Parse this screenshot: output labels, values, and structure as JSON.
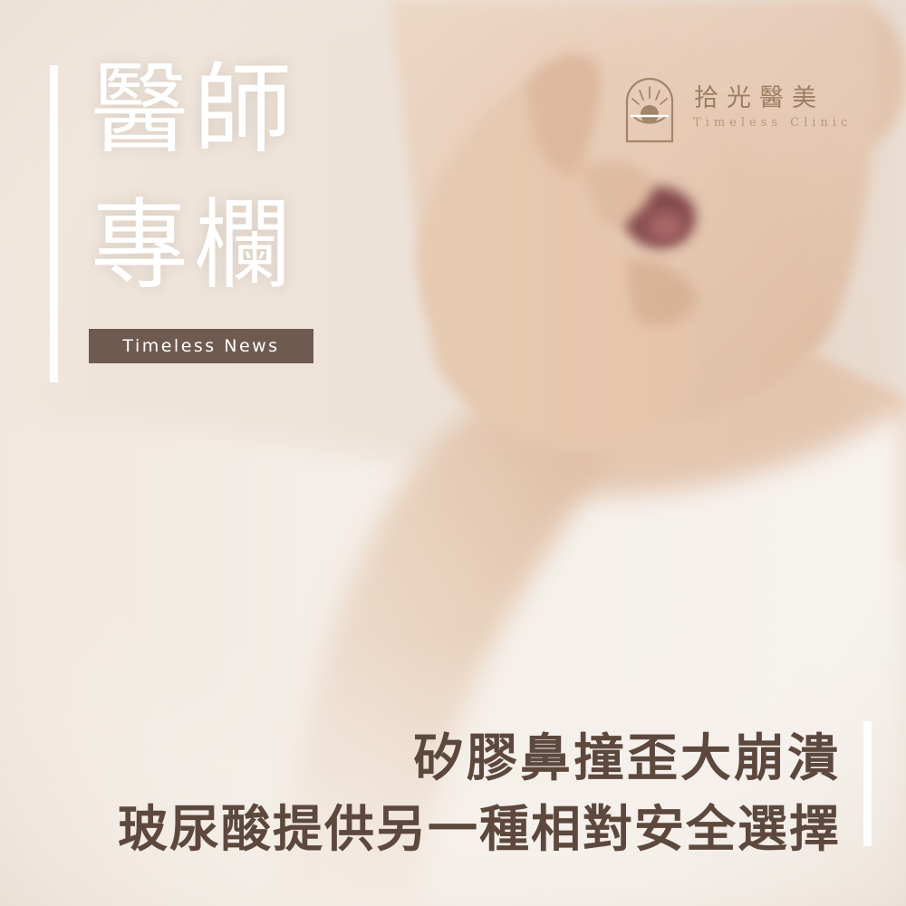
{
  "header": {
    "title_line_1": "醫師",
    "title_line_2": "專欄",
    "badge": "Timeless News"
  },
  "logo": {
    "name_zh": "拾光醫美",
    "name_en": "Timeless Clinic"
  },
  "headline": {
    "line_1": "矽膠鼻撞歪大崩潰",
    "line_2": "玻尿酸提供另一種相對安全選擇"
  },
  "photo": {
    "subject": "person-covering-nose-photo",
    "background_color": "#ece2d8",
    "skin_color": "#e9cdb6",
    "shirt_color": "#f6f2ee"
  },
  "colors": {
    "accent": "#6f5a50",
    "headline_text": "#5d483d",
    "logo_gold": "#9c7e62",
    "title_text": "#ffffff"
  }
}
